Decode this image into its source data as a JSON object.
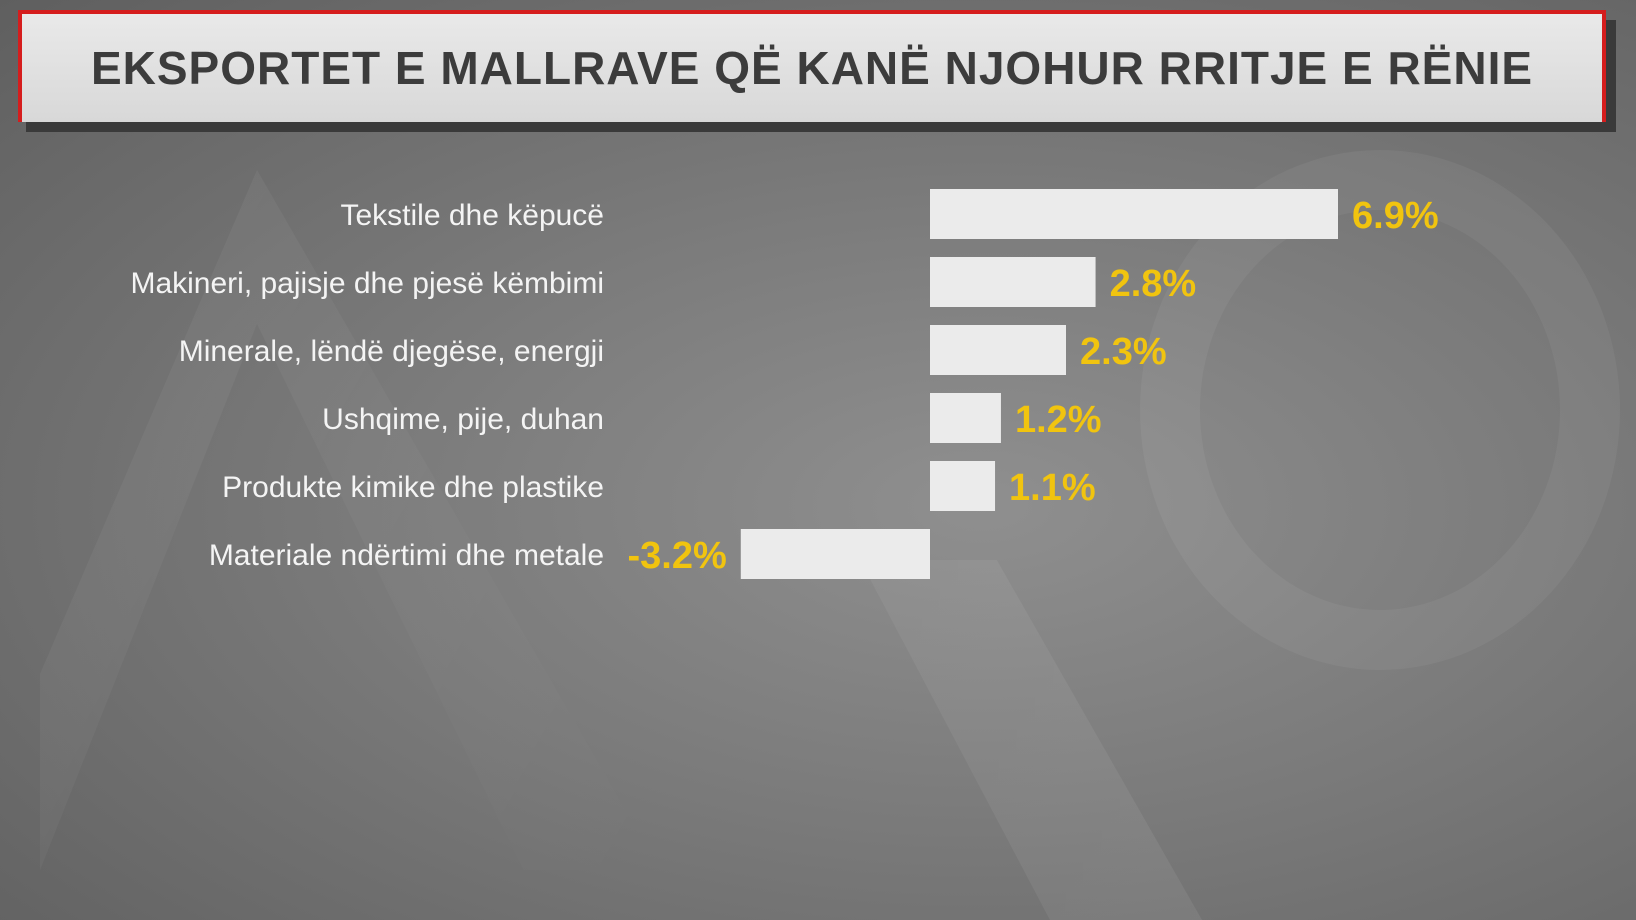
{
  "title": "EKSPORTET E MALLRAVE QË KANË NJOHUR RRITJE E RËNIE",
  "colors": {
    "bar": "#ebebeb",
    "value_label": "#f1c40f",
    "category_label": "#f4f4f4",
    "title_border": "#d51d1d"
  },
  "chart_data": {
    "type": "bar",
    "orientation": "horizontal",
    "categories": [
      "Tekstile dhe këpucë",
      "Makineri, pajisje dhe pjesë këmbimi",
      "Minerale, lëndë djegëse, energji",
      "Ushqime, pije, duhan",
      "Produkte kimike dhe plastike",
      "Materiale ndërtimi dhe metale"
    ],
    "values": [
      6.9,
      2.8,
      2.3,
      1.2,
      1.1,
      -3.2
    ],
    "value_labels": [
      "6.9%",
      "2.8%",
      "2.3%",
      "1.2%",
      "1.1%",
      "-3.2%"
    ],
    "unit": "%",
    "xlim": [
      -3.2,
      6.9
    ],
    "grid": false,
    "legend": "none"
  }
}
